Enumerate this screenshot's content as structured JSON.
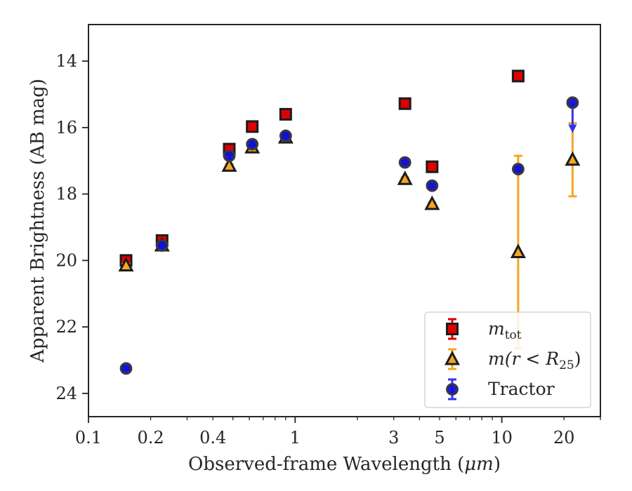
{
  "chart_data": {
    "type": "scatter",
    "xlabel": "Observed-frame Wavelength (μm)",
    "xlabel_prefix": "Observed-frame Wavelength (",
    "xlabel_unit": "μm",
    "xlabel_suffix": ")",
    "ylabel": "Apparent Brightness (AB mag)",
    "x_scale": "log",
    "xlim": [
      0.1,
      30
    ],
    "ylim": [
      24.7,
      12.9
    ],
    "y_inverted": true,
    "grid": false,
    "legend_position": "lower-right",
    "x_ticks": [
      {
        "value": 0.1,
        "label": "0.1"
      },
      {
        "value": 0.2,
        "label": "0.2"
      },
      {
        "value": 0.4,
        "label": "0.4"
      },
      {
        "value": 1,
        "label": "1"
      },
      {
        "value": 3,
        "label": "3"
      },
      {
        "value": 5,
        "label": "5"
      },
      {
        "value": 10,
        "label": "10"
      },
      {
        "value": 20,
        "label": "20"
      }
    ],
    "y_ticks": [
      {
        "value": 14,
        "label": "14"
      },
      {
        "value": 16,
        "label": "16"
      },
      {
        "value": 18,
        "label": "18"
      },
      {
        "value": 20,
        "label": "20"
      },
      {
        "value": 22,
        "label": "22"
      },
      {
        "value": 24,
        "label": "24"
      }
    ],
    "series": [
      {
        "name": "m_tot",
        "legend": {
          "italic": "m",
          "sub": "tot",
          "rest": ""
        },
        "marker": "square",
        "face_color": "#e00000",
        "edge_color": "#1c1c1c",
        "error_color": "#e00000",
        "points": [
          {
            "x": 0.152,
            "y": 20.0,
            "yerr": 0.1
          },
          {
            "x": 0.227,
            "y": 19.4,
            "yerr": 0.1
          },
          {
            "x": 0.48,
            "y": 16.65,
            "yerr": 0.05
          },
          {
            "x": 0.62,
            "y": 15.97,
            "yerr": 0.05
          },
          {
            "x": 0.9,
            "y": 15.6,
            "yerr": 0.05
          },
          {
            "x": 3.4,
            "y": 15.28,
            "yerr": 0.05
          },
          {
            "x": 4.6,
            "y": 17.18,
            "yerr": 0.05
          },
          {
            "x": 12.0,
            "y": 14.45,
            "yerr": 0.05
          }
        ]
      },
      {
        "name": "m(r < R_25)",
        "legend": {
          "italic": "m",
          "rest": "(r < R",
          "sub": "25",
          "close": ")"
        },
        "marker": "triangle",
        "face_color": "#f5a623",
        "edge_color": "#1c1c1c",
        "error_color": "#f5a623",
        "points": [
          {
            "x": 0.152,
            "y": 20.15,
            "yerr": 0.05
          },
          {
            "x": 0.227,
            "y": 19.55,
            "yerr": 0.05
          },
          {
            "x": 0.48,
            "y": 17.15,
            "yerr": 0.05
          },
          {
            "x": 0.62,
            "y": 16.6,
            "yerr": 0.05
          },
          {
            "x": 0.9,
            "y": 16.3,
            "yerr": 0.05
          },
          {
            "x": 3.4,
            "y": 17.55,
            "yerr": 0.05
          },
          {
            "x": 4.6,
            "y": 18.3,
            "yerr": 0.05
          },
          {
            "x": 12.0,
            "y": 19.75,
            "yerr_low": 2.9,
            "yerr_high": 2.9
          },
          {
            "x": 22.0,
            "y": 16.97,
            "yerr_low": 1.1,
            "yerr_high": 1.1
          }
        ]
      },
      {
        "name": "Tractor",
        "legend": {
          "text": "Tractor"
        },
        "marker": "circle",
        "face_color": "#1010d0",
        "edge_color": "#3a3a3a",
        "error_color": "#3333ee",
        "points": [
          {
            "x": 0.152,
            "y": 23.25,
            "yerr": 0.05
          },
          {
            "x": 0.227,
            "y": 19.55,
            "yerr": 0.05
          },
          {
            "x": 0.48,
            "y": 16.85,
            "yerr": 0.1
          },
          {
            "x": 0.62,
            "y": 16.5,
            "yerr": 0.1
          },
          {
            "x": 0.9,
            "y": 16.25,
            "yerr": 0.1
          },
          {
            "x": 3.4,
            "y": 17.05,
            "yerr": 0.05
          },
          {
            "x": 4.6,
            "y": 17.75,
            "yerr": 0.05
          },
          {
            "x": 12.0,
            "y": 17.25,
            "yerr": 0.05
          },
          {
            "x": 22.0,
            "y": 15.25,
            "upper_limit": true,
            "arrow_to": 16.1
          }
        ]
      }
    ]
  }
}
